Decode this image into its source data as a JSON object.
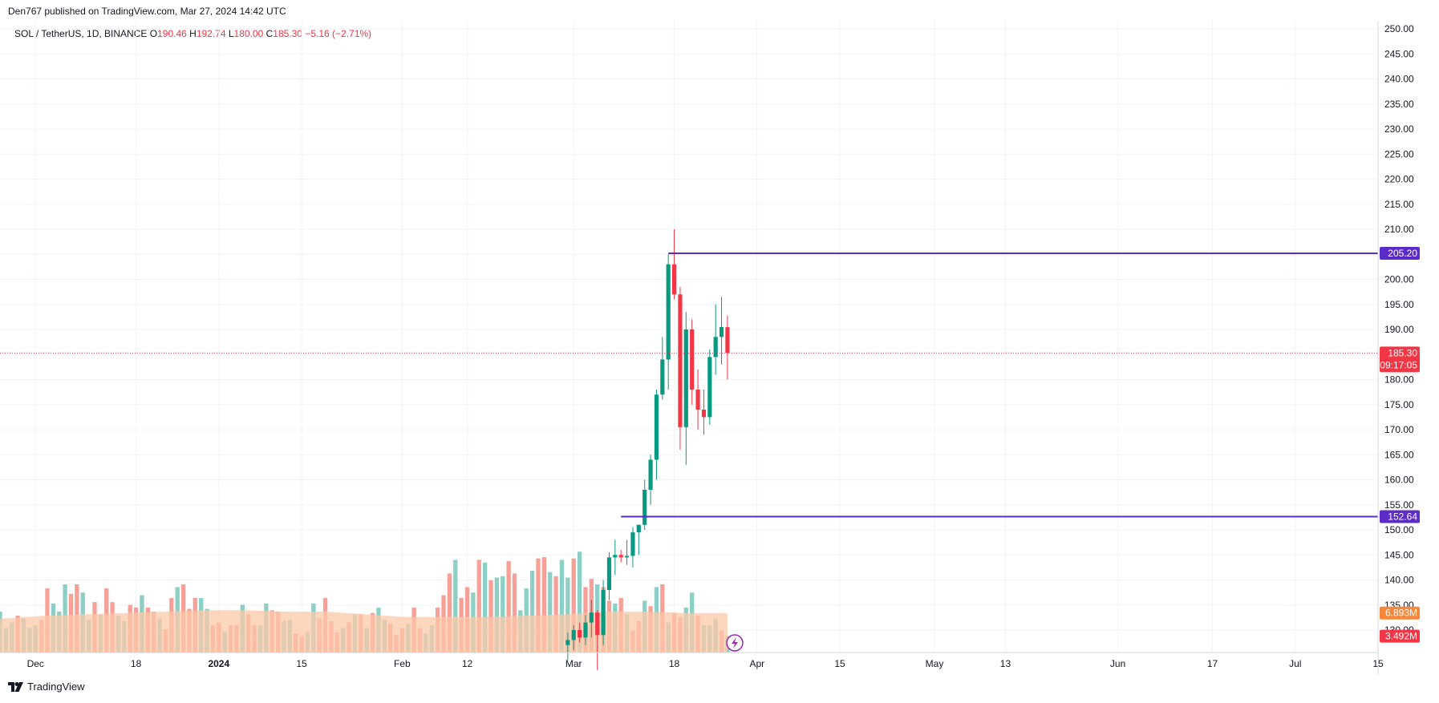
{
  "header": {
    "publisher": "Den767 published on TradingView.com, Mar 27, 2024 14:42 UTC"
  },
  "legend": {
    "symbol": "SOL / TetherUS, 1D, BINANCE",
    "o_label": "O",
    "o_value": "190.46",
    "h_label": "H",
    "h_value": "192.74",
    "l_label": "L",
    "l_value": "180.00",
    "c_label": "C",
    "c_value": "185.30",
    "change": "−5.16 (−2.71%)"
  },
  "footer": {
    "brand": "TradingView"
  },
  "colors": {
    "up": "#089981",
    "down": "#f23645",
    "vol_up": "#8ccfc5",
    "vol_down": "#f7a097",
    "vol_ma_fill": "#fcc8a8",
    "hline": "#5b2cc7",
    "vol_ma_tag": "#f7883b",
    "grid": "#f0f3fa"
  },
  "chart_data": {
    "type": "candlestick",
    "symbol": "SOL / TetherUS",
    "interval": "1D",
    "exchange": "BINANCE",
    "y_ticks": [
      "250.00",
      "245.00",
      "240.00",
      "235.00",
      "230.00",
      "225.00",
      "220.00",
      "215.00",
      "210.00",
      "205.00",
      "200.00",
      "195.00",
      "190.00",
      "185.00",
      "180.00",
      "175.00",
      "170.00",
      "165.00",
      "160.00",
      "155.00",
      "150.00",
      "145.00",
      "140.00",
      "135.00",
      "130.00"
    ],
    "ylim": [
      127.5,
      251.5
    ],
    "x_ticks": [
      {
        "label": "Dec",
        "date": "2023-12-01"
      },
      {
        "label": "18",
        "date": "2023-12-18"
      },
      {
        "label": "2024",
        "date": "2024-01-01"
      },
      {
        "label": "15",
        "date": "2024-01-15"
      },
      {
        "label": "Feb",
        "date": "2024-02-01"
      },
      {
        "label": "12",
        "date": "2024-02-12"
      },
      {
        "label": "Mar",
        "date": "2024-03-01"
      },
      {
        "label": "18",
        "date": "2024-03-18"
      },
      {
        "label": "Apr",
        "date": "2024-04-01"
      },
      {
        "label": "15",
        "date": "2024-04-15"
      },
      {
        "label": "May",
        "date": "2024-05-01"
      },
      {
        "label": "13",
        "date": "2024-05-13"
      },
      {
        "label": "Jun",
        "date": "2024-06-01"
      },
      {
        "label": "17",
        "date": "2024-06-17"
      },
      {
        "label": "Jul",
        "date": "2024-07-01"
      },
      {
        "label": "15",
        "date": "2024-07-15"
      }
    ],
    "x_range": [
      "2023-11-25",
      "2024-07-15"
    ],
    "horizontal_levels": [
      {
        "value": 205.2,
        "label": "205.20",
        "start_date": "2024-03-17"
      },
      {
        "value": 152.64,
        "label": "152.64",
        "start_date": "2024-03-09"
      }
    ],
    "last_price": {
      "value": 185.3,
      "label": "185.30",
      "countdown": "09:17:05"
    },
    "volume_labels": [
      {
        "label": "6.893M",
        "ma_level": 0.3
      },
      {
        "label": "3.492M",
        "level": 0.12
      }
    ],
    "candles": [
      {
        "date": "2024-02-29",
        "o": 127.0,
        "h": 129.5,
        "l": 124.0,
        "c": 128.0
      },
      {
        "date": "2024-03-01",
        "o": 128.0,
        "h": 131.0,
        "l": 126.0,
        "c": 130.0
      },
      {
        "date": "2024-03-02",
        "o": 130.0,
        "h": 131.5,
        "l": 127.5,
        "c": 128.5
      },
      {
        "date": "2024-03-03",
        "o": 128.5,
        "h": 133.0,
        "l": 127.0,
        "c": 131.5
      },
      {
        "date": "2024-03-04",
        "o": 131.5,
        "h": 136.0,
        "l": 128.5,
        "c": 133.5
      },
      {
        "date": "2024-03-05",
        "o": 133.5,
        "h": 134.0,
        "l": 122.0,
        "c": 129.0
      },
      {
        "date": "2024-03-06",
        "o": 129.0,
        "h": 140.0,
        "l": 127.0,
        "c": 138.0
      },
      {
        "date": "2024-03-07",
        "o": 138.0,
        "h": 145.5,
        "l": 136.0,
        "c": 144.5
      },
      {
        "date": "2024-03-08",
        "o": 144.5,
        "h": 148.0,
        "l": 141.0,
        "c": 145.0
      },
      {
        "date": "2024-03-09",
        "o": 145.0,
        "h": 146.0,
        "l": 143.5,
        "c": 144.5
      },
      {
        "date": "2024-03-10",
        "o": 144.5,
        "h": 148.0,
        "l": 143.0,
        "c": 144.8
      },
      {
        "date": "2024-03-11",
        "o": 144.8,
        "h": 150.5,
        "l": 142.5,
        "c": 149.5
      },
      {
        "date": "2024-03-12",
        "o": 149.5,
        "h": 151.0,
        "l": 145.0,
        "c": 151.0
      },
      {
        "date": "2024-03-13",
        "o": 151.0,
        "h": 160.0,
        "l": 150.0,
        "c": 158.0
      },
      {
        "date": "2024-03-14",
        "o": 158.0,
        "h": 165.0,
        "l": 155.0,
        "c": 164.0
      },
      {
        "date": "2024-03-15",
        "o": 164.0,
        "h": 178.0,
        "l": 160.0,
        "c": 177.0
      },
      {
        "date": "2024-03-16",
        "o": 177.0,
        "h": 188.5,
        "l": 176.0,
        "c": 184.0
      },
      {
        "date": "2024-03-17",
        "o": 184.0,
        "h": 205.0,
        "l": 178.0,
        "c": 203.0
      },
      {
        "date": "2024-03-18",
        "o": 203.0,
        "h": 210.0,
        "l": 196.0,
        "c": 197.0
      },
      {
        "date": "2024-03-19",
        "o": 197.0,
        "h": 198.5,
        "l": 166.0,
        "c": 170.5
      },
      {
        "date": "2024-03-20",
        "o": 170.5,
        "h": 193.5,
        "l": 163.0,
        "c": 190.0
      },
      {
        "date": "2024-03-21",
        "o": 190.0,
        "h": 192.0,
        "l": 175.0,
        "c": 178.0
      },
      {
        "date": "2024-03-22",
        "o": 178.0,
        "h": 182.0,
        "l": 170.0,
        "c": 174.0
      },
      {
        "date": "2024-03-23",
        "o": 174.0,
        "h": 178.0,
        "l": 169.0,
        "c": 172.5
      },
      {
        "date": "2024-03-24",
        "o": 172.5,
        "h": 186.0,
        "l": 171.0,
        "c": 184.5
      },
      {
        "date": "2024-03-25",
        "o": 184.5,
        "h": 195.0,
        "l": 181.0,
        "c": 188.5
      },
      {
        "date": "2024-03-26",
        "o": 188.5,
        "h": 196.5,
        "l": 183.0,
        "c": 190.5
      },
      {
        "date": "2024-03-27",
        "o": 190.46,
        "h": 192.74,
        "l": 180.0,
        "c": 185.3
      }
    ],
    "volume": {
      "levels": [
        0.2,
        0.18,
        0.14,
        0.16,
        0.16,
        0.24,
        0.3,
        0.18,
        0.22,
        0.27,
        0.25,
        0.18,
        0.2,
        0.24,
        0.47,
        0.36,
        0.3,
        0.5,
        0.43,
        0.5,
        0.44,
        0.24,
        0.37,
        0.28,
        0.47,
        0.37,
        0.27,
        0.23,
        0.35,
        0.33,
        0.42,
        0.33,
        0.3,
        0.25,
        0.17,
        0.4,
        0.48,
        0.5,
        0.32,
        0.4,
        0.4,
        0.32,
        0.2,
        0.22,
        0.15,
        0.2,
        0.2,
        0.35,
        0.28,
        0.2,
        0.2,
        0.36,
        0.31,
        0.3,
        0.23,
        0.24,
        0.14,
        0.12,
        0.15,
        0.36,
        0.25,
        0.4,
        0.23,
        0.15,
        0.18,
        0.22,
        0.28,
        0.28,
        0.18,
        0.29,
        0.33,
        0.24,
        0.21,
        0.13,
        0.18,
        0.21,
        0.33,
        0.18,
        0.14,
        0.2,
        0.33,
        0.42,
        0.58,
        0.68,
        0.4,
        0.48,
        0.44,
        0.68,
        0.66,
        0.53,
        0.55,
        0.56,
        0.67,
        0.58,
        0.31,
        0.47,
        0.6,
        0.69,
        0.7,
        0.59,
        0.56,
        0.68,
        0.55,
        0.69,
        0.74,
        0.48,
        0.54,
        0.5,
        0.48,
        0.38,
        0.36,
        0.4,
        0.28,
        0.16,
        0.23,
        0.38,
        0.34,
        0.48,
        0.5,
        0.22,
        0.29,
        0.26,
        0.33,
        0.44,
        0.27,
        0.2,
        0.2,
        0.25,
        0.16,
        0.12
      ],
      "directions": "udduuduuuduuudduuudduududduudduddudduddduudduddudduudduudduuddddudududuudddudduuddduddududuudduuudduduududduddududdudud",
      "ma_levels": [
        0.22,
        0.25,
        0.27,
        0.28,
        0.29,
        0.3,
        0.31,
        0.31,
        0.3,
        0.3,
        0.28,
        0.26,
        0.26,
        0.26,
        0.27,
        0.28,
        0.3,
        0.3,
        0.29,
        0.29
      ]
    }
  }
}
